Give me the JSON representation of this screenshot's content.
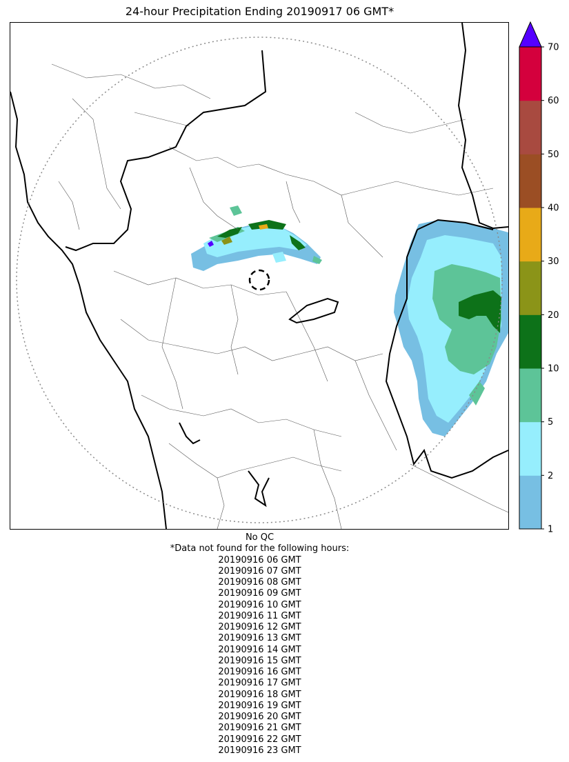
{
  "title": "24-hour Precipitation Ending 20190917 06 GMT*",
  "colorbar": {
    "ticks": [
      "1",
      "2",
      "5",
      "10",
      "20",
      "30",
      "40",
      "50",
      "60",
      "70"
    ],
    "colors": [
      "#77bfe3",
      "#96eefd",
      "#5dc498",
      "#0d7219",
      "#8b9418",
      "#e8aa18",
      "#9b4e24",
      "#a84a40",
      "#d4003d"
    ],
    "extend_color": "#5500ff",
    "extend": "max"
  },
  "map": {
    "boundary_style": "thick black = state/coast, thin = district",
    "range_ring": "dotted grey circle",
    "radar_marker": "dashed black circle",
    "legend_palette": {
      "light_blue": "#77bfe3",
      "cyan": "#96eefd",
      "green": "#5dc498",
      "dark_green": "#0d7219",
      "olive": "#8b9418",
      "orange": "#e8aa18",
      "purple": "#5500ff"
    }
  },
  "notes": {
    "qc": "No QC",
    "missing_header": "*Data not found for the following hours:",
    "missing_hours": [
      "20190916 06 GMT",
      "20190916 07 GMT",
      "20190916 08 GMT",
      "20190916 09 GMT",
      "20190916 10 GMT",
      "20190916 11 GMT",
      "20190916 12 GMT",
      "20190916 13 GMT",
      "20190916 14 GMT",
      "20190916 15 GMT",
      "20190916 16 GMT",
      "20190916 17 GMT",
      "20190916 18 GMT",
      "20190916 19 GMT",
      "20190916 20 GMT",
      "20190916 21 GMT",
      "20190916 22 GMT",
      "20190916 23 GMT"
    ]
  }
}
